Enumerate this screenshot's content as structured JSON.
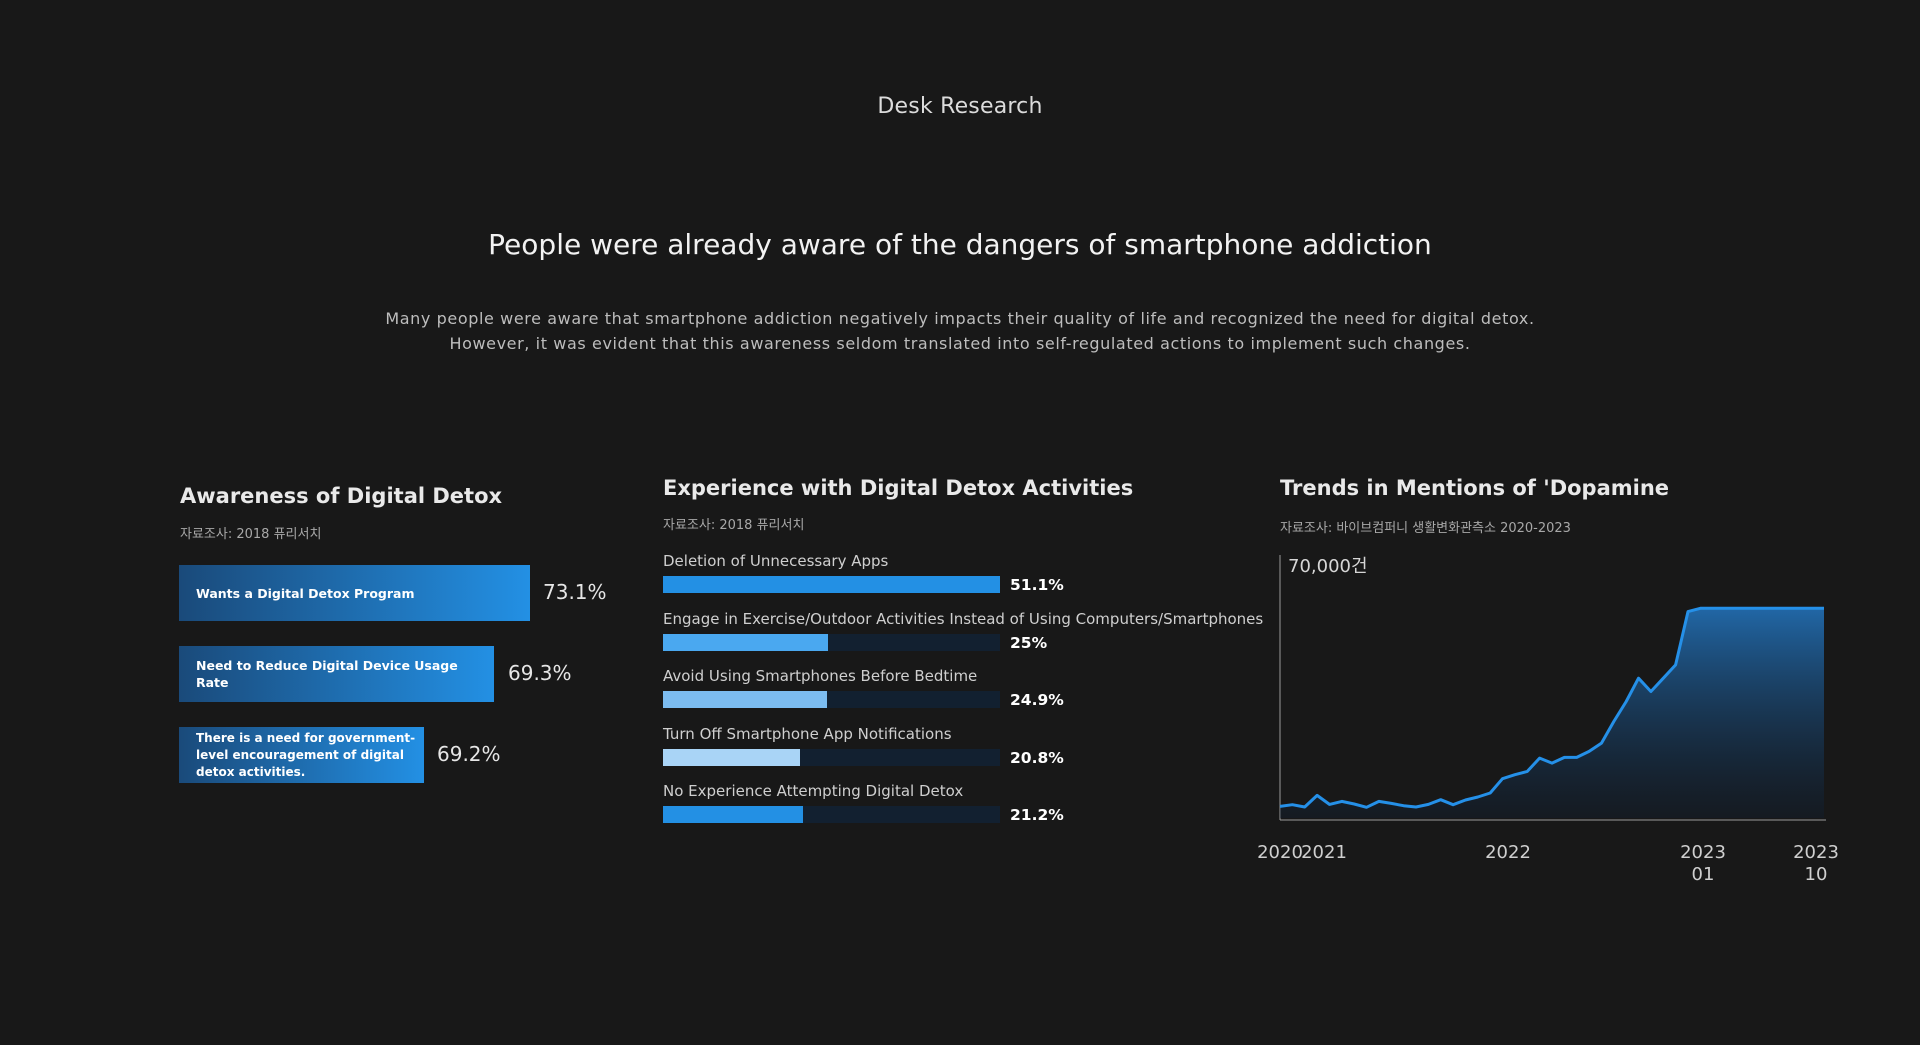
{
  "header": {
    "section_label": "Desk Research",
    "headline": "People were already aware of the dangers of smartphone addiction",
    "description_line1": "Many people were aware that smartphone addiction negatively impacts their quality of life and recognized the need for digital detox.",
    "description_line2": "However, it was evident that this awareness seldom translated into self-regulated actions to implement such changes."
  },
  "colors": {
    "background": "#181818",
    "accent": "#2390e4",
    "accent_light": "#9fd0f5",
    "track": "#122030"
  },
  "chart_data": [
    {
      "type": "bar",
      "orientation": "horizontal",
      "title": "Awareness of Digital Detox",
      "source": "자료조사: 2018 퓨리서치",
      "categories": [
        "Wants a Digital Detox Program",
        "Need to Reduce Digital Device Usage Rate",
        "There is a need for government-level encouragement of digital detox activities."
      ],
      "values": [
        73.1,
        69.3,
        69.2
      ],
      "value_labels": [
        "73.1%",
        "69.3%",
        "69.2%"
      ],
      "unit": "%"
    },
    {
      "type": "bar",
      "orientation": "horizontal",
      "title": "Experience with Digital Detox Activities",
      "source": "자료조사: 2018 퓨리서치",
      "categories": [
        "Deletion of Unnecessary Apps",
        "Engage in Exercise/Outdoor Activities Instead of Using Computers/Smartphones",
        "Avoid Using Smartphones Before Bedtime",
        "Turn Off Smartphone App Notifications",
        "No Experience Attempting Digital Detox"
      ],
      "values": [
        51.1,
        25,
        24.9,
        20.8,
        21.2
      ],
      "value_labels": [
        "51.1%",
        "25%",
        "24.9%",
        "20.8%",
        "21.2%"
      ],
      "bar_colors": [
        "#2390e4",
        "#4aa8f0",
        "#7cbcf0",
        "#a9d4f6",
        "#2390e4"
      ],
      "unit": "%"
    },
    {
      "type": "area",
      "title": "Trends in Mentions of 'Dopamine",
      "source": "자료조사: 바이브컴퍼니 생활변화관측소 2020-2023",
      "y_label": "70,000건",
      "ylim": [
        0,
        70000
      ],
      "x_tick_labels": [
        "2020",
        "2021",
        "2022",
        "2023\n01",
        "2023\n10"
      ],
      "x": [
        0,
        1,
        2,
        3,
        4,
        5,
        6,
        7,
        8,
        9,
        10,
        11,
        12,
        13,
        14,
        15,
        16,
        17,
        18,
        19,
        20,
        21,
        22,
        23,
        24,
        25,
        26,
        27,
        28,
        29,
        30,
        31,
        32,
        33,
        34,
        35,
        36,
        37,
        38,
        39,
        40,
        41,
        42,
        43,
        44
      ],
      "values": [
        3500,
        4000,
        3300,
        6800,
        4100,
        5000,
        4200,
        3200,
        5000,
        4400,
        3700,
        3300,
        4100,
        5500,
        4000,
        5400,
        6300,
        7500,
        11800,
        13000,
        14000,
        18000,
        16500,
        18200,
        18200,
        20000,
        22500,
        29000,
        35000,
        42000,
        38000,
        42000,
        46000,
        62000,
        63000,
        63000,
        63000,
        63000,
        63000,
        63000,
        63000,
        63000,
        63000,
        63000,
        63000
      ]
    }
  ]
}
